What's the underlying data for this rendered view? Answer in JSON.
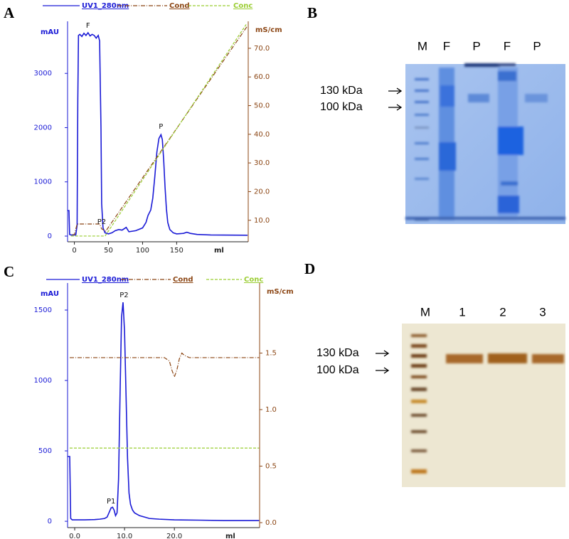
{
  "panel_labels": [
    "A",
    "B",
    "C",
    "D"
  ],
  "chart_data": [
    {
      "type": "line",
      "ylabel": "mAU",
      "y2label": "mS/cm",
      "xlabel": "ml",
      "xlim": [
        -10,
        255
      ],
      "xticks": [
        0,
        50,
        100,
        150
      ],
      "ylim": [
        -105,
        3960
      ],
      "yticks": [
        0,
        1000,
        2000,
        3000
      ],
      "y2lim": [
        2.5,
        79.4
      ],
      "y2ticks": [
        {
          "value": 10,
          "label": "10.0"
        },
        {
          "value": 20,
          "label": "20.0"
        },
        {
          "value": 30,
          "label": "30.0"
        },
        {
          "value": 40,
          "label": "40.0"
        },
        {
          "value": 50,
          "label": "50.0"
        },
        {
          "value": 60,
          "label": "60.0"
        },
        {
          "value": 70,
          "label": "70.0"
        }
      ],
      "series": [
        {
          "name": "UV1_280nm",
          "color": "#1a1ad6",
          "dash": "solid",
          "x": [
            -10,
            -8,
            -7,
            -5,
            0,
            2,
            4,
            5,
            6,
            8,
            11,
            14,
            17,
            20,
            23,
            26,
            29,
            32,
            35,
            37,
            39,
            40,
            42,
            45,
            50,
            55,
            60,
            65,
            70,
            76,
            80,
            90,
            100,
            105,
            108,
            110,
            112,
            115,
            118,
            121,
            124,
            127,
            129,
            131,
            133,
            135,
            137,
            140,
            145,
            150,
            160,
            165,
            170,
            180,
            200,
            254
          ],
          "values": [
            470,
            470,
            30,
            20,
            20,
            20,
            200,
            2500,
            3700,
            3720,
            3680,
            3740,
            3700,
            3750,
            3690,
            3720,
            3700,
            3650,
            3700,
            3600,
            2000,
            600,
            150,
            60,
            40,
            60,
            100,
            120,
            110,
            160,
            80,
            100,
            150,
            250,
            380,
            430,
            480,
            700,
            1100,
            1550,
            1800,
            1870,
            1780,
            1400,
            900,
            500,
            250,
            120,
            60,
            40,
            50,
            70,
            50,
            30,
            20,
            15
          ]
        },
        {
          "name": "Cond",
          "color": "#8b4513",
          "dash": "dashdot",
          "axis": "y2",
          "x": [
            -3,
            0,
            4,
            6,
            37,
            40,
            44,
            46,
            253
          ],
          "values": [
            5,
            5,
            8.7,
            8.7,
            8.7,
            7,
            6.5,
            6.2,
            77.5
          ]
        },
        {
          "name": "Conc",
          "color": "#9acd32",
          "dash": "dashed",
          "axis": "y2",
          "x": [
            -5,
            45,
            252
          ],
          "values": [
            4.5,
            4.5,
            78.3
          ]
        }
      ],
      "annotations": [
        {
          "text": "F",
          "x": 20,
          "y": 3880
        },
        {
          "text": "P",
          "x": 127,
          "y": 2020
        },
        {
          "text": "P2",
          "x": 40,
          "y": 262
        }
      ]
    },
    {
      "type": "line",
      "ylabel": "mAU",
      "y2label": "mS/cm",
      "xlabel": "ml",
      "xlim": [
        -1.43,
        37.1
      ],
      "xticks": [
        {
          "value": 0,
          "label": "0.0"
        },
        {
          "value": 10,
          "label": "10.0"
        },
        {
          "value": 20,
          "label": "20.0"
        }
      ],
      "ylim": [
        -45,
        1692
      ],
      "yticks": [
        0,
        500,
        1000,
        1500
      ],
      "y2lim": [
        -0.044,
        2.12
      ],
      "y2ticks": [
        {
          "value": 0,
          "label": "0.0"
        },
        0.5,
        {
          "value": 1,
          "label": "1.0"
        },
        1.5
      ],
      "series": [
        {
          "name": "UV1_280nm",
          "color": "#1a1ad6",
          "dash": "solid",
          "x": [
            -1.4,
            -1.0,
            -0.8,
            -0.5,
            0,
            2,
            4,
            5,
            6,
            6.5,
            7,
            7.3,
            7.6,
            7.9,
            8.2,
            8.5,
            8.8,
            9.1,
            9.4,
            9.7,
            10.0,
            10.3,
            10.6,
            10.9,
            11.2,
            11.6,
            12,
            13,
            14,
            15,
            17,
            20,
            25,
            30,
            37
          ],
          "values": [
            460,
            460,
            20,
            10,
            10,
            10,
            12,
            15,
            20,
            30,
            70,
            95,
            100,
            80,
            40,
            60,
            300,
            900,
            1450,
            1555,
            1350,
            900,
            450,
            200,
            120,
            80,
            60,
            40,
            30,
            20,
            15,
            10,
            8,
            5,
            5
          ]
        },
        {
          "name": "Cond",
          "color": "#8b4513",
          "dash": "dashdot",
          "axis": "y2",
          "x": [
            -1,
            15,
            18,
            19,
            19.5,
            20,
            20.5,
            21,
            21.5,
            22,
            23,
            25,
            37
          ],
          "values": [
            1.46,
            1.46,
            1.46,
            1.43,
            1.35,
            1.29,
            1.35,
            1.45,
            1.5,
            1.48,
            1.46,
            1.46,
            1.46
          ]
        },
        {
          "name": "Conc",
          "color": "#9acd32",
          "dash": "dashed",
          "axis": "y2",
          "x": [
            -1,
            37
          ],
          "values": [
            0.66,
            0.66
          ]
        }
      ],
      "annotations": [
        {
          "text": "P2",
          "x": 9.9,
          "y": 1606
        },
        {
          "text": "P1",
          "x": 7.3,
          "y": 141
        }
      ]
    }
  ],
  "gels": [
    {
      "lanes": [
        "M",
        "F",
        "P",
        "F",
        "P"
      ],
      "markers": [
        "130 kDa",
        "100 kDa"
      ]
    },
    {
      "lanes": [
        "M",
        "1",
        "2",
        "3"
      ],
      "markers": [
        "130 kDa",
        "100 kDa"
      ]
    }
  ]
}
